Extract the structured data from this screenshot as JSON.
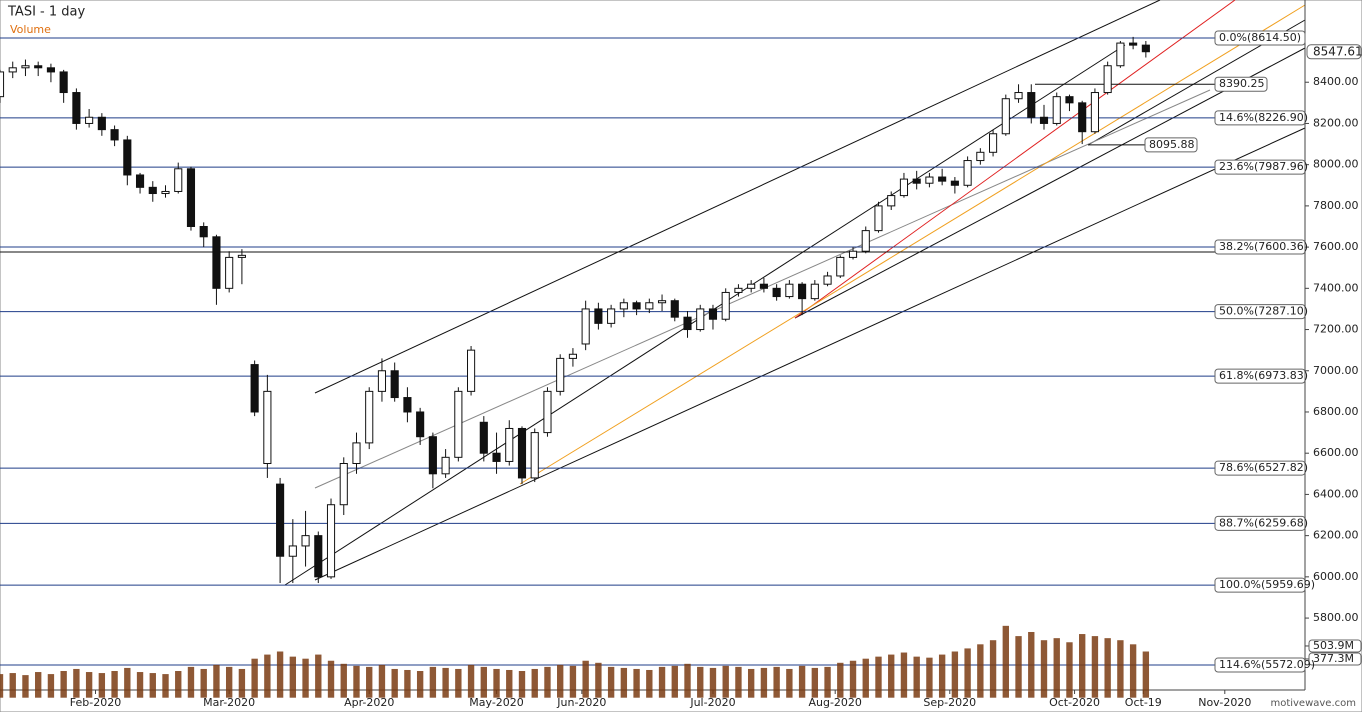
{
  "chart_data": {
    "type": "candlestick",
    "title": "TASI - 1 day",
    "subtitle": "Volume",
    "watermark": "motivewave.com",
    "xlim": [
      0,
      102.5
    ],
    "xticks": [
      {
        "value": 7.5,
        "label": "Feb-2020"
      },
      {
        "value": 18,
        "label": "Mar-2020"
      },
      {
        "value": 29,
        "label": "Apr-2020"
      },
      {
        "value": 39,
        "label": "May-2020"
      },
      {
        "value": 45.7,
        "label": "Jun-2020"
      },
      {
        "value": 56,
        "label": "Jul-2020"
      },
      {
        "value": 65.6,
        "label": "Aug-2020"
      },
      {
        "value": 74.6,
        "label": "Sep-2020"
      },
      {
        "value": 84.4,
        "label": "Oct-2020"
      },
      {
        "value": 89.8,
        "label": "Oct-19"
      },
      {
        "value": 96.2,
        "label": "Nov-2020"
      }
    ],
    "ylim": [
      5451,
      8799
    ],
    "yticks": [
      {
        "value": 5800,
        "label": "5800.00"
      },
      {
        "value": 6000,
        "label": "6000.00"
      },
      {
        "value": 6200,
        "label": "6200.00"
      },
      {
        "value": 6400,
        "label": "6400.00"
      },
      {
        "value": 6600,
        "label": "6600.00"
      },
      {
        "value": 6800,
        "label": "6800.00"
      },
      {
        "value": 7000,
        "label": "7000.00"
      },
      {
        "value": 7200,
        "label": "7200.00"
      },
      {
        "value": 7400,
        "label": "7400.00"
      },
      {
        "value": 7600,
        "label": "7600.00"
      },
      {
        "value": 7800,
        "label": "7800.00"
      },
      {
        "value": 8000,
        "label": "8000.00"
      },
      {
        "value": 8200,
        "label": "8200.00"
      },
      {
        "value": 8400,
        "label": "8400.00"
      }
    ],
    "y2lim": [
      0,
      6796
    ],
    "y2ticks": [
      {
        "value": 377.3,
        "label": "377.3M"
      },
      {
        "value": 503.9,
        "label": "503.9M"
      }
    ],
    "last_price": {
      "value": 8547.61,
      "label": "8547.61"
    },
    "levels": [
      {
        "value": 8614.5,
        "label": "0.0%(8614.50)"
      },
      {
        "value": 8226.9,
        "label": "14.6%(8226.90)"
      },
      {
        "value": 7987.96,
        "label": "23.6%(7987.96)"
      },
      {
        "value": 7600.36,
        "label": "38.2%(7600.36)"
      },
      {
        "value": 7287.1,
        "label": "50.0%(7287.10)"
      },
      {
        "value": 6973.83,
        "label": "61.8%(6973.83)"
      },
      {
        "value": 6527.82,
        "label": "78.6%(6527.82)"
      },
      {
        "value": 6259.68,
        "label": "88.7%(6259.68)"
      },
      {
        "value": 5959.69,
        "label": "100.0%(5959.69)"
      },
      {
        "value": 5572.09,
        "label": "114.6%(5572.09)"
      }
    ],
    "level_color": "#1f3c88",
    "markers": [
      {
        "value": 8390.25,
        "label": "8390.25"
      },
      {
        "value": 8095.88,
        "label": "8095.88"
      }
    ],
    "candles": [
      [
        8330,
        8460,
        8300,
        8450
      ],
      [
        8450,
        8500,
        8420,
        8470
      ],
      [
        8470,
        8510,
        8430,
        8480
      ],
      [
        8480,
        8500,
        8430,
        8470
      ],
      [
        8470,
        8490,
        8400,
        8450
      ],
      [
        8450,
        8460,
        8300,
        8350
      ],
      [
        8350,
        8370,
        8170,
        8200
      ],
      [
        8200,
        8270,
        8180,
        8230
      ],
      [
        8230,
        8250,
        8140,
        8170
      ],
      [
        8170,
        8190,
        8090,
        8120
      ],
      [
        8120,
        8140,
        7900,
        7950
      ],
      [
        7950,
        7960,
        7860,
        7890
      ],
      [
        7890,
        7920,
        7820,
        7860
      ],
      [
        7860,
        7900,
        7840,
        7870
      ],
      [
        7870,
        8010,
        7860,
        7980
      ],
      [
        7980,
        7990,
        7680,
        7700
      ],
      [
        7700,
        7720,
        7600,
        7650
      ],
      [
        7650,
        7660,
        7320,
        7400
      ],
      [
        7400,
        7580,
        7380,
        7550
      ],
      [
        7550,
        7590,
        7420,
        7560
      ],
      [
        7030,
        7050,
        6780,
        6800
      ],
      [
        6550,
        6980,
        6480,
        6900
      ],
      [
        6450,
        6480,
        5970,
        6100
      ],
      [
        6100,
        6280,
        5970,
        6150
      ],
      [
        6150,
        6320,
        6050,
        6200
      ],
      [
        6200,
        6220,
        5970,
        6000
      ],
      [
        6000,
        6380,
        5990,
        6350
      ],
      [
        6350,
        6580,
        6300,
        6550
      ],
      [
        6550,
        6700,
        6500,
        6650
      ],
      [
        6650,
        6920,
        6620,
        6900
      ],
      [
        6900,
        7060,
        6850,
        7000
      ],
      [
        7000,
        7040,
        6850,
        6870
      ],
      [
        6870,
        6920,
        6750,
        6800
      ],
      [
        6800,
        6820,
        6640,
        6680
      ],
      [
        6680,
        6700,
        6430,
        6500
      ],
      [
        6500,
        6620,
        6480,
        6580
      ],
      [
        6580,
        6920,
        6560,
        6900
      ],
      [
        6900,
        7120,
        6880,
        7100
      ],
      [
        6750,
        6780,
        6560,
        6600
      ],
      [
        6600,
        6700,
        6500,
        6560
      ],
      [
        6560,
        6760,
        6540,
        6720
      ],
      [
        6720,
        6730,
        6450,
        6480
      ],
      [
        6480,
        6720,
        6460,
        6700
      ],
      [
        6700,
        6920,
        6680,
        6900
      ],
      [
        6900,
        7080,
        6880,
        7060
      ],
      [
        7060,
        7110,
        7020,
        7080
      ],
      [
        7130,
        7340,
        7100,
        7300
      ],
      [
        7300,
        7330,
        7200,
        7230
      ],
      [
        7230,
        7320,
        7210,
        7300
      ],
      [
        7300,
        7350,
        7260,
        7330
      ],
      [
        7330,
        7340,
        7270,
        7300
      ],
      [
        7300,
        7350,
        7280,
        7330
      ],
      [
        7330,
        7370,
        7290,
        7340
      ],
      [
        7340,
        7350,
        7240,
        7260
      ],
      [
        7260,
        7290,
        7160,
        7200
      ],
      [
        7200,
        7320,
        7190,
        7300
      ],
      [
        7300,
        7320,
        7200,
        7250
      ],
      [
        7250,
        7400,
        7240,
        7380
      ],
      [
        7380,
        7420,
        7360,
        7400
      ],
      [
        7400,
        7440,
        7380,
        7420
      ],
      [
        7420,
        7450,
        7380,
        7400
      ],
      [
        7400,
        7420,
        7340,
        7360
      ],
      [
        7360,
        7440,
        7350,
        7420
      ],
      [
        7420,
        7430,
        7270,
        7350
      ],
      [
        7350,
        7440,
        7340,
        7420
      ],
      [
        7420,
        7480,
        7410,
        7460
      ],
      [
        7460,
        7560,
        7450,
        7550
      ],
      [
        7550,
        7600,
        7540,
        7580
      ],
      [
        7580,
        7700,
        7570,
        7680
      ],
      [
        7680,
        7820,
        7670,
        7800
      ],
      [
        7800,
        7870,
        7780,
        7850
      ],
      [
        7850,
        7960,
        7840,
        7930
      ],
      [
        7930,
        7970,
        7880,
        7910
      ],
      [
        7910,
        7960,
        7890,
        7940
      ],
      [
        7940,
        7980,
        7900,
        7920
      ],
      [
        7920,
        7940,
        7860,
        7900
      ],
      [
        7900,
        8040,
        7890,
        8020
      ],
      [
        8020,
        8080,
        8000,
        8060
      ],
      [
        8060,
        8170,
        8040,
        8150
      ],
      [
        8150,
        8340,
        8140,
        8320
      ],
      [
        8320,
        8390,
        8300,
        8350
      ],
      [
        8350,
        8390,
        8200,
        8230
      ],
      [
        8230,
        8290,
        8170,
        8200
      ],
      [
        8200,
        8350,
        8190,
        8330
      ],
      [
        8330,
        8340,
        8260,
        8300
      ],
      [
        8300,
        8310,
        8100,
        8160
      ],
      [
        8160,
        8370,
        8150,
        8350
      ],
      [
        8350,
        8500,
        8340,
        8480
      ],
      [
        8480,
        8600,
        8470,
        8590
      ],
      [
        8590,
        8620,
        8560,
        8580
      ],
      [
        8580,
        8600,
        8520,
        8548
      ]
    ],
    "volume": [
      230,
      240,
      220,
      250,
      230,
      260,
      280,
      250,
      240,
      260,
      290,
      250,
      240,
      230,
      260,
      300,
      280,
      320,
      300,
      280,
      380,
      420,
      450,
      400,
      380,
      420,
      360,
      330,
      310,
      300,
      320,
      280,
      270,
      260,
      300,
      290,
      280,
      320,
      300,
      280,
      270,
      260,
      280,
      300,
      320,
      310,
      360,
      340,
      300,
      290,
      280,
      270,
      300,
      310,
      330,
      300,
      290,
      310,
      300,
      280,
      290,
      300,
      280,
      310,
      290,
      300,
      340,
      360,
      380,
      400,
      420,
      440,
      400,
      390,
      420,
      450,
      480,
      520,
      560,
      700,
      600,
      640,
      560,
      580,
      540,
      620,
      600,
      580,
      560,
      520,
      450
    ],
    "volume_color": "#7a3b12"
  }
}
